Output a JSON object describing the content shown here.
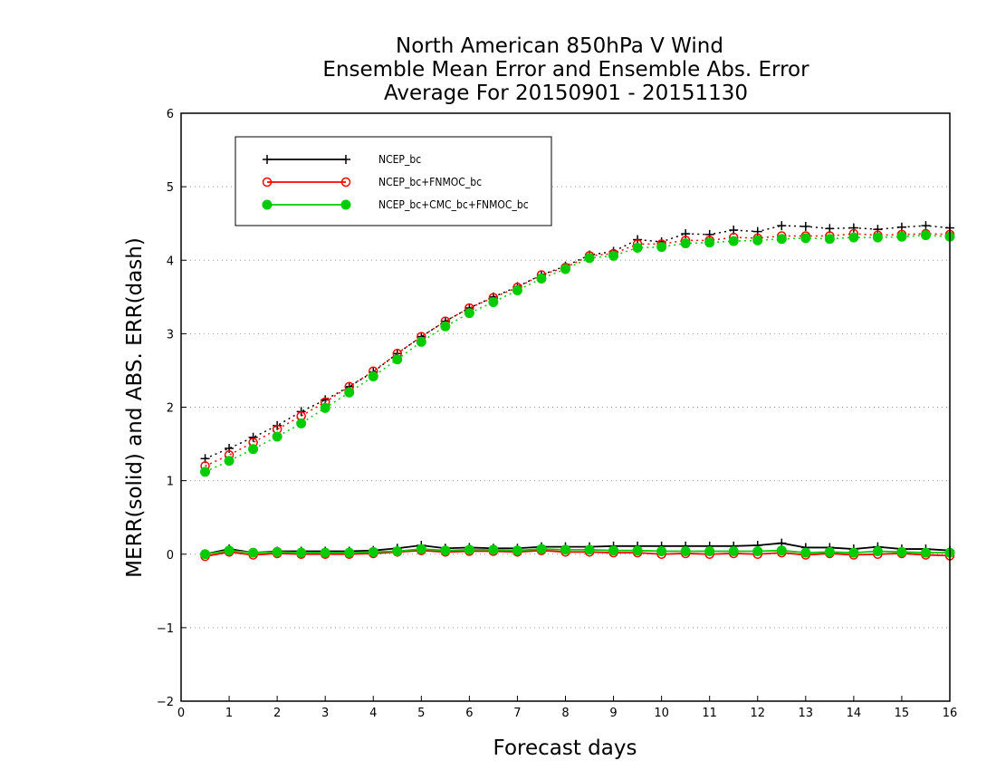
{
  "chart_data": {
    "type": "line",
    "title_lines": [
      "North American 850hPa V Wind",
      "Ensemble Mean Error and Ensemble Abs. Error",
      "Average For 20150901 - 20151130"
    ],
    "xlabel": "Forecast days",
    "ylabel": "MERR(solid) and ABS. ERR(dash)",
    "xlim": [
      0,
      16
    ],
    "ylim": [
      -2,
      6
    ],
    "xticks": [
      0,
      1,
      2,
      3,
      4,
      5,
      6,
      7,
      8,
      9,
      10,
      11,
      12,
      13,
      14,
      15,
      16
    ],
    "yticks": [
      -2,
      -1,
      0,
      1,
      2,
      3,
      4,
      5,
      6
    ],
    "grid": "horizontal dotted",
    "legend_position": "top-left",
    "x": [
      0.5,
      1,
      1.5,
      2,
      2.5,
      3,
      3.5,
      4,
      4.5,
      5,
      5.5,
      6,
      6.5,
      7,
      7.5,
      8,
      8.5,
      9,
      9.5,
      10,
      10.5,
      11,
      11.5,
      12,
      12.5,
      13,
      13.5,
      14,
      14.5,
      15,
      15.5,
      16
    ],
    "series": [
      {
        "name": "NCEP_bc",
        "color": "#000000",
        "marker": "plus",
        "abs_err": [
          1.3,
          1.44,
          1.59,
          1.75,
          1.94,
          2.1,
          2.28,
          2.48,
          2.73,
          2.96,
          3.17,
          3.35,
          3.5,
          3.64,
          3.8,
          3.92,
          4.07,
          4.12,
          4.28,
          4.25,
          4.36,
          4.35,
          4.41,
          4.39,
          4.47,
          4.46,
          4.43,
          4.44,
          4.42,
          4.45,
          4.47,
          4.44
        ],
        "mean_err": [
          0.0,
          0.07,
          0.02,
          0.04,
          0.04,
          0.04,
          0.04,
          0.05,
          0.08,
          0.12,
          0.08,
          0.09,
          0.08,
          0.08,
          0.1,
          0.1,
          0.1,
          0.11,
          0.11,
          0.11,
          0.11,
          0.11,
          0.11,
          0.12,
          0.15,
          0.09,
          0.09,
          0.07,
          0.1,
          0.07,
          0.07,
          0.05
        ]
      },
      {
        "name": "NCEP_bc+FNMOC_bc",
        "color": "#ff0000",
        "marker": "open-circle",
        "abs_err": [
          1.2,
          1.35,
          1.52,
          1.7,
          1.88,
          2.07,
          2.28,
          2.49,
          2.73,
          2.96,
          3.17,
          3.35,
          3.49,
          3.63,
          3.8,
          3.9,
          4.06,
          4.09,
          4.22,
          4.22,
          4.27,
          4.27,
          4.31,
          4.3,
          4.33,
          4.33,
          4.33,
          4.36,
          4.34,
          4.35,
          4.36,
          4.35
        ],
        "mean_err": [
          -0.03,
          0.03,
          -0.01,
          0.01,
          0.0,
          0.0,
          0.0,
          0.01,
          0.03,
          0.05,
          0.03,
          0.04,
          0.04,
          0.03,
          0.05,
          0.03,
          0.03,
          0.02,
          0.02,
          0.0,
          0.01,
          0.0,
          0.01,
          0.0,
          0.02,
          -0.01,
          0.01,
          -0.01,
          0.0,
          0.01,
          -0.01,
          -0.02
        ]
      },
      {
        "name": "NCEP_bc+CMC_bc+FNMOC_bc",
        "color": "#00cc00",
        "marker": "filled-circle",
        "abs_err": [
          1.12,
          1.27,
          1.43,
          1.6,
          1.78,
          1.99,
          2.2,
          2.42,
          2.65,
          2.89,
          3.1,
          3.28,
          3.43,
          3.59,
          3.75,
          3.88,
          4.03,
          4.06,
          4.17,
          4.18,
          4.23,
          4.24,
          4.26,
          4.27,
          4.29,
          4.3,
          4.29,
          4.31,
          4.31,
          4.32,
          4.34,
          4.32
        ],
        "mean_err": [
          0.0,
          0.05,
          0.02,
          0.03,
          0.02,
          0.02,
          0.02,
          0.03,
          0.04,
          0.07,
          0.05,
          0.06,
          0.06,
          0.05,
          0.07,
          0.06,
          0.06,
          0.05,
          0.05,
          0.04,
          0.04,
          0.04,
          0.04,
          0.04,
          0.05,
          0.02,
          0.03,
          0.02,
          0.04,
          0.03,
          0.02,
          0.02
        ]
      }
    ]
  }
}
